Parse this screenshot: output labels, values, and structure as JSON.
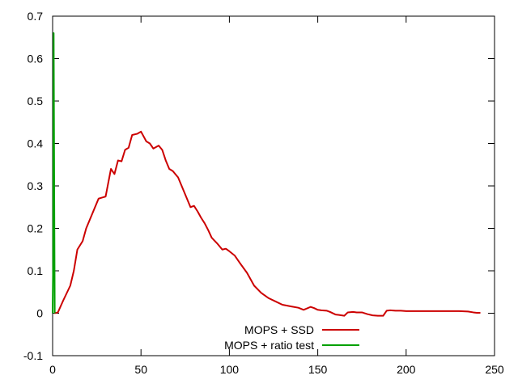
{
  "chart_data": {
    "type": "line",
    "title": "",
    "xlabel": "",
    "ylabel": "",
    "xlim": [
      0,
      250
    ],
    "ylim": [
      -0.1,
      0.7
    ],
    "xticks": [
      0,
      50,
      100,
      150,
      200,
      250
    ],
    "yticks": [
      -0.1,
      0,
      0.1,
      0.2,
      0.3,
      0.4,
      0.5,
      0.6,
      0.7
    ],
    "xtick_labels": [
      "0",
      "50",
      "100",
      "150",
      "200",
      "250"
    ],
    "ytick_labels": [
      "-0.1",
      "0",
      "0.1",
      "0.2",
      "0.3",
      "0.4",
      "0.5",
      "0.6",
      "0.7"
    ],
    "grid": false,
    "legend_position": "bottom-center",
    "series": [
      {
        "name": "MOPS + SSD",
        "color": "#cc0000",
        "x": [
          1,
          3,
          6,
          10,
          12,
          14,
          17,
          19,
          22,
          26,
          30,
          33,
          35,
          37,
          39,
          41,
          43,
          45,
          48,
          50,
          53,
          55,
          57,
          60,
          62,
          64,
          66,
          68,
          71,
          74,
          76,
          78,
          80,
          82,
          84,
          86,
          88,
          90,
          93,
          96,
          98,
          100,
          103,
          106,
          110,
          114,
          118,
          122,
          126,
          130,
          135,
          139,
          142,
          146,
          148,
          150,
          152,
          155,
          157,
          160,
          162,
          165,
          167,
          170,
          172,
          175,
          178,
          181,
          184,
          187,
          189,
          191,
          194,
          197,
          200,
          205,
          210,
          215,
          220,
          225,
          230,
          235,
          238,
          240,
          242
        ],
        "y": [
          0.0,
          0.002,
          0.03,
          0.065,
          0.1,
          0.15,
          0.17,
          0.2,
          0.23,
          0.27,
          0.275,
          0.34,
          0.328,
          0.36,
          0.358,
          0.385,
          0.39,
          0.42,
          0.423,
          0.428,
          0.405,
          0.4,
          0.388,
          0.395,
          0.385,
          0.36,
          0.34,
          0.335,
          0.32,
          0.29,
          0.27,
          0.25,
          0.253,
          0.24,
          0.225,
          0.212,
          0.196,
          0.178,
          0.165,
          0.15,
          0.152,
          0.146,
          0.136,
          0.118,
          0.095,
          0.065,
          0.048,
          0.036,
          0.028,
          0.02,
          0.016,
          0.013,
          0.008,
          0.015,
          0.012,
          0.008,
          0.007,
          0.006,
          0.003,
          -0.003,
          -0.004,
          -0.006,
          0.002,
          0.003,
          0.002,
          0.002,
          -0.002,
          -0.005,
          -0.006,
          -0.006,
          0.006,
          0.007,
          0.006,
          0.006,
          0.005,
          0.005,
          0.005,
          0.005,
          0.005,
          0.005,
          0.005,
          0.004,
          0.002,
          0.001,
          0.001
        ]
      },
      {
        "name": "MOPS + ratio test",
        "color": "#00a000",
        "x": [
          0,
          0.3,
          0.6,
          0.9,
          1.2
        ],
        "y": [
          0.0,
          0.12,
          0.66,
          0.3,
          0.0
        ]
      }
    ]
  }
}
